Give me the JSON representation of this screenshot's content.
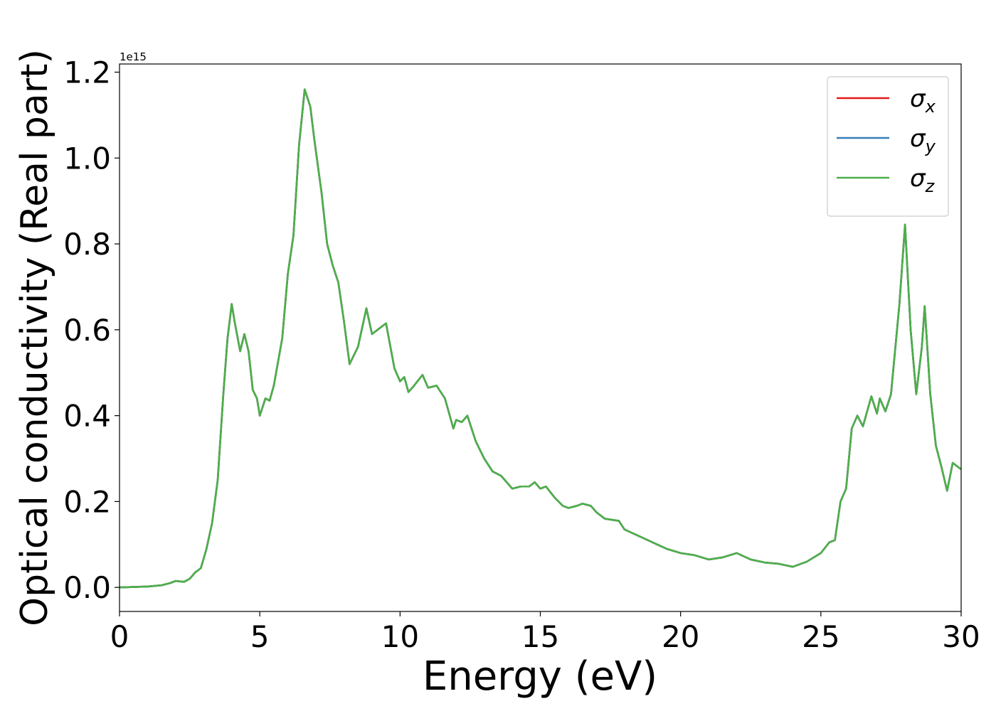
{
  "chart_data": {
    "type": "line",
    "xlabel": "Energy (eV)",
    "ylabel": "Optical conductivity (Real part)",
    "y_offset_label": "1e15",
    "x": [
      0,
      1,
      1.5,
      1.8,
      2,
      2.3,
      2.5,
      2.7,
      2.9,
      3.1,
      3.3,
      3.5,
      3.7,
      3.85,
      4,
      4.1,
      4.3,
      4.45,
      4.6,
      4.75,
      4.9,
      5,
      5.2,
      5.35,
      5.5,
      5.8,
      6,
      6.2,
      6.4,
      6.6,
      6.8,
      6.95,
      7.2,
      7.4,
      7.6,
      7.8,
      8,
      8.2,
      8.5,
      8.8,
      9,
      9.2,
      9.5,
      9.8,
      10,
      10.15,
      10.3,
      10.5,
      10.8,
      11,
      11.3,
      11.6,
      11.9,
      12,
      12.2,
      12.4,
      12.7,
      13,
      13.3,
      13.6,
      14,
      14.3,
      14.6,
      14.8,
      15,
      15.2,
      15.5,
      15.8,
      16,
      16.3,
      16.5,
      16.8,
      17,
      17.3,
      17.8,
      18,
      18.5,
      19,
      19.5,
      20,
      20.5,
      21,
      21.5,
      22,
      22.5,
      23,
      23.5,
      24,
      24.5,
      25,
      25.3,
      25.5,
      25.7,
      25.9,
      26.1,
      26.3,
      26.5,
      26.8,
      27,
      27.1,
      27.3,
      27.5,
      27.8,
      28,
      28.2,
      28.4,
      28.6,
      28.7,
      28.9,
      29.1,
      29.3,
      29.5,
      29.7,
      30
    ],
    "series": [
      {
        "name": "σx",
        "color": "#e41a1c",
        "values": [
          0,
          0.002,
          0.005,
          0.01,
          0.015,
          0.013,
          0.02,
          0.035,
          0.045,
          0.09,
          0.15,
          0.25,
          0.45,
          0.58,
          0.66,
          0.62,
          0.55,
          0.59,
          0.55,
          0.46,
          0.44,
          0.4,
          0.44,
          0.435,
          0.47,
          0.58,
          0.73,
          0.82,
          1.03,
          1.16,
          1.12,
          1.04,
          0.92,
          0.8,
          0.75,
          0.71,
          0.62,
          0.52,
          0.56,
          0.65,
          0.59,
          0.6,
          0.615,
          0.51,
          0.48,
          0.49,
          0.455,
          0.47,
          0.495,
          0.465,
          0.47,
          0.44,
          0.37,
          0.39,
          0.385,
          0.4,
          0.34,
          0.3,
          0.27,
          0.26,
          0.23,
          0.235,
          0.235,
          0.245,
          0.23,
          0.235,
          0.21,
          0.19,
          0.185,
          0.19,
          0.195,
          0.19,
          0.175,
          0.16,
          0.155,
          0.135,
          0.12,
          0.105,
          0.09,
          0.08,
          0.075,
          0.065,
          0.07,
          0.08,
          0.065,
          0.058,
          0.055,
          0.048,
          0.06,
          0.08,
          0.105,
          0.11,
          0.2,
          0.23,
          0.37,
          0.4,
          0.375,
          0.445,
          0.405,
          0.44,
          0.41,
          0.45,
          0.66,
          0.845,
          0.6,
          0.45,
          0.56,
          0.655,
          0.45,
          0.33,
          0.28,
          0.225,
          0.29,
          0.275
        ]
      },
      {
        "name": "σy",
        "color": "#377eb8",
        "values": [
          0,
          0.002,
          0.005,
          0.01,
          0.015,
          0.013,
          0.02,
          0.035,
          0.045,
          0.09,
          0.15,
          0.25,
          0.45,
          0.58,
          0.66,
          0.62,
          0.55,
          0.59,
          0.55,
          0.46,
          0.44,
          0.4,
          0.44,
          0.435,
          0.47,
          0.58,
          0.73,
          0.82,
          1.03,
          1.16,
          1.12,
          1.04,
          0.92,
          0.8,
          0.75,
          0.71,
          0.62,
          0.52,
          0.56,
          0.65,
          0.59,
          0.6,
          0.615,
          0.51,
          0.48,
          0.49,
          0.455,
          0.47,
          0.495,
          0.465,
          0.47,
          0.44,
          0.37,
          0.39,
          0.385,
          0.4,
          0.34,
          0.3,
          0.27,
          0.26,
          0.23,
          0.235,
          0.235,
          0.245,
          0.23,
          0.235,
          0.21,
          0.19,
          0.185,
          0.19,
          0.195,
          0.19,
          0.175,
          0.16,
          0.155,
          0.135,
          0.12,
          0.105,
          0.09,
          0.08,
          0.075,
          0.065,
          0.07,
          0.08,
          0.065,
          0.058,
          0.055,
          0.048,
          0.06,
          0.08,
          0.105,
          0.11,
          0.2,
          0.23,
          0.37,
          0.4,
          0.375,
          0.445,
          0.405,
          0.44,
          0.41,
          0.45,
          0.66,
          0.845,
          0.6,
          0.45,
          0.56,
          0.655,
          0.45,
          0.33,
          0.28,
          0.225,
          0.29,
          0.275
        ]
      },
      {
        "name": "σz",
        "color": "#4daf4a",
        "values": [
          0,
          0.002,
          0.005,
          0.01,
          0.015,
          0.013,
          0.02,
          0.035,
          0.045,
          0.09,
          0.15,
          0.25,
          0.45,
          0.58,
          0.66,
          0.62,
          0.55,
          0.59,
          0.55,
          0.46,
          0.44,
          0.4,
          0.44,
          0.435,
          0.47,
          0.58,
          0.73,
          0.82,
          1.03,
          1.16,
          1.12,
          1.04,
          0.92,
          0.8,
          0.75,
          0.71,
          0.62,
          0.52,
          0.56,
          0.65,
          0.59,
          0.6,
          0.615,
          0.51,
          0.48,
          0.49,
          0.455,
          0.47,
          0.495,
          0.465,
          0.47,
          0.44,
          0.37,
          0.39,
          0.385,
          0.4,
          0.34,
          0.3,
          0.27,
          0.26,
          0.23,
          0.235,
          0.235,
          0.245,
          0.23,
          0.235,
          0.21,
          0.19,
          0.185,
          0.19,
          0.195,
          0.19,
          0.175,
          0.16,
          0.155,
          0.135,
          0.12,
          0.105,
          0.09,
          0.08,
          0.075,
          0.065,
          0.07,
          0.08,
          0.065,
          0.058,
          0.055,
          0.048,
          0.06,
          0.08,
          0.105,
          0.11,
          0.2,
          0.23,
          0.37,
          0.4,
          0.375,
          0.445,
          0.405,
          0.44,
          0.41,
          0.45,
          0.66,
          0.845,
          0.6,
          0.45,
          0.56,
          0.655,
          0.45,
          0.33,
          0.28,
          0.225,
          0.29,
          0.275
        ]
      }
    ],
    "xlim": [
      0,
      30
    ],
    "xticks": [
      0,
      5,
      10,
      15,
      20,
      25,
      30
    ],
    "ylim": [
      -0.056,
      1.219
    ],
    "yticks": [
      {
        "value": 0,
        "label": "0.0"
      },
      {
        "value": 0.2,
        "label": "0.2"
      },
      {
        "value": 0.4,
        "label": "0.4"
      },
      {
        "value": 0.6,
        "label": "0.6"
      },
      {
        "value": 0.8,
        "label": "0.8"
      },
      {
        "value": 1,
        "label": "1.0"
      },
      {
        "value": 1.2,
        "label": "1.2"
      }
    ],
    "grid": false,
    "legend": "upper right"
  }
}
